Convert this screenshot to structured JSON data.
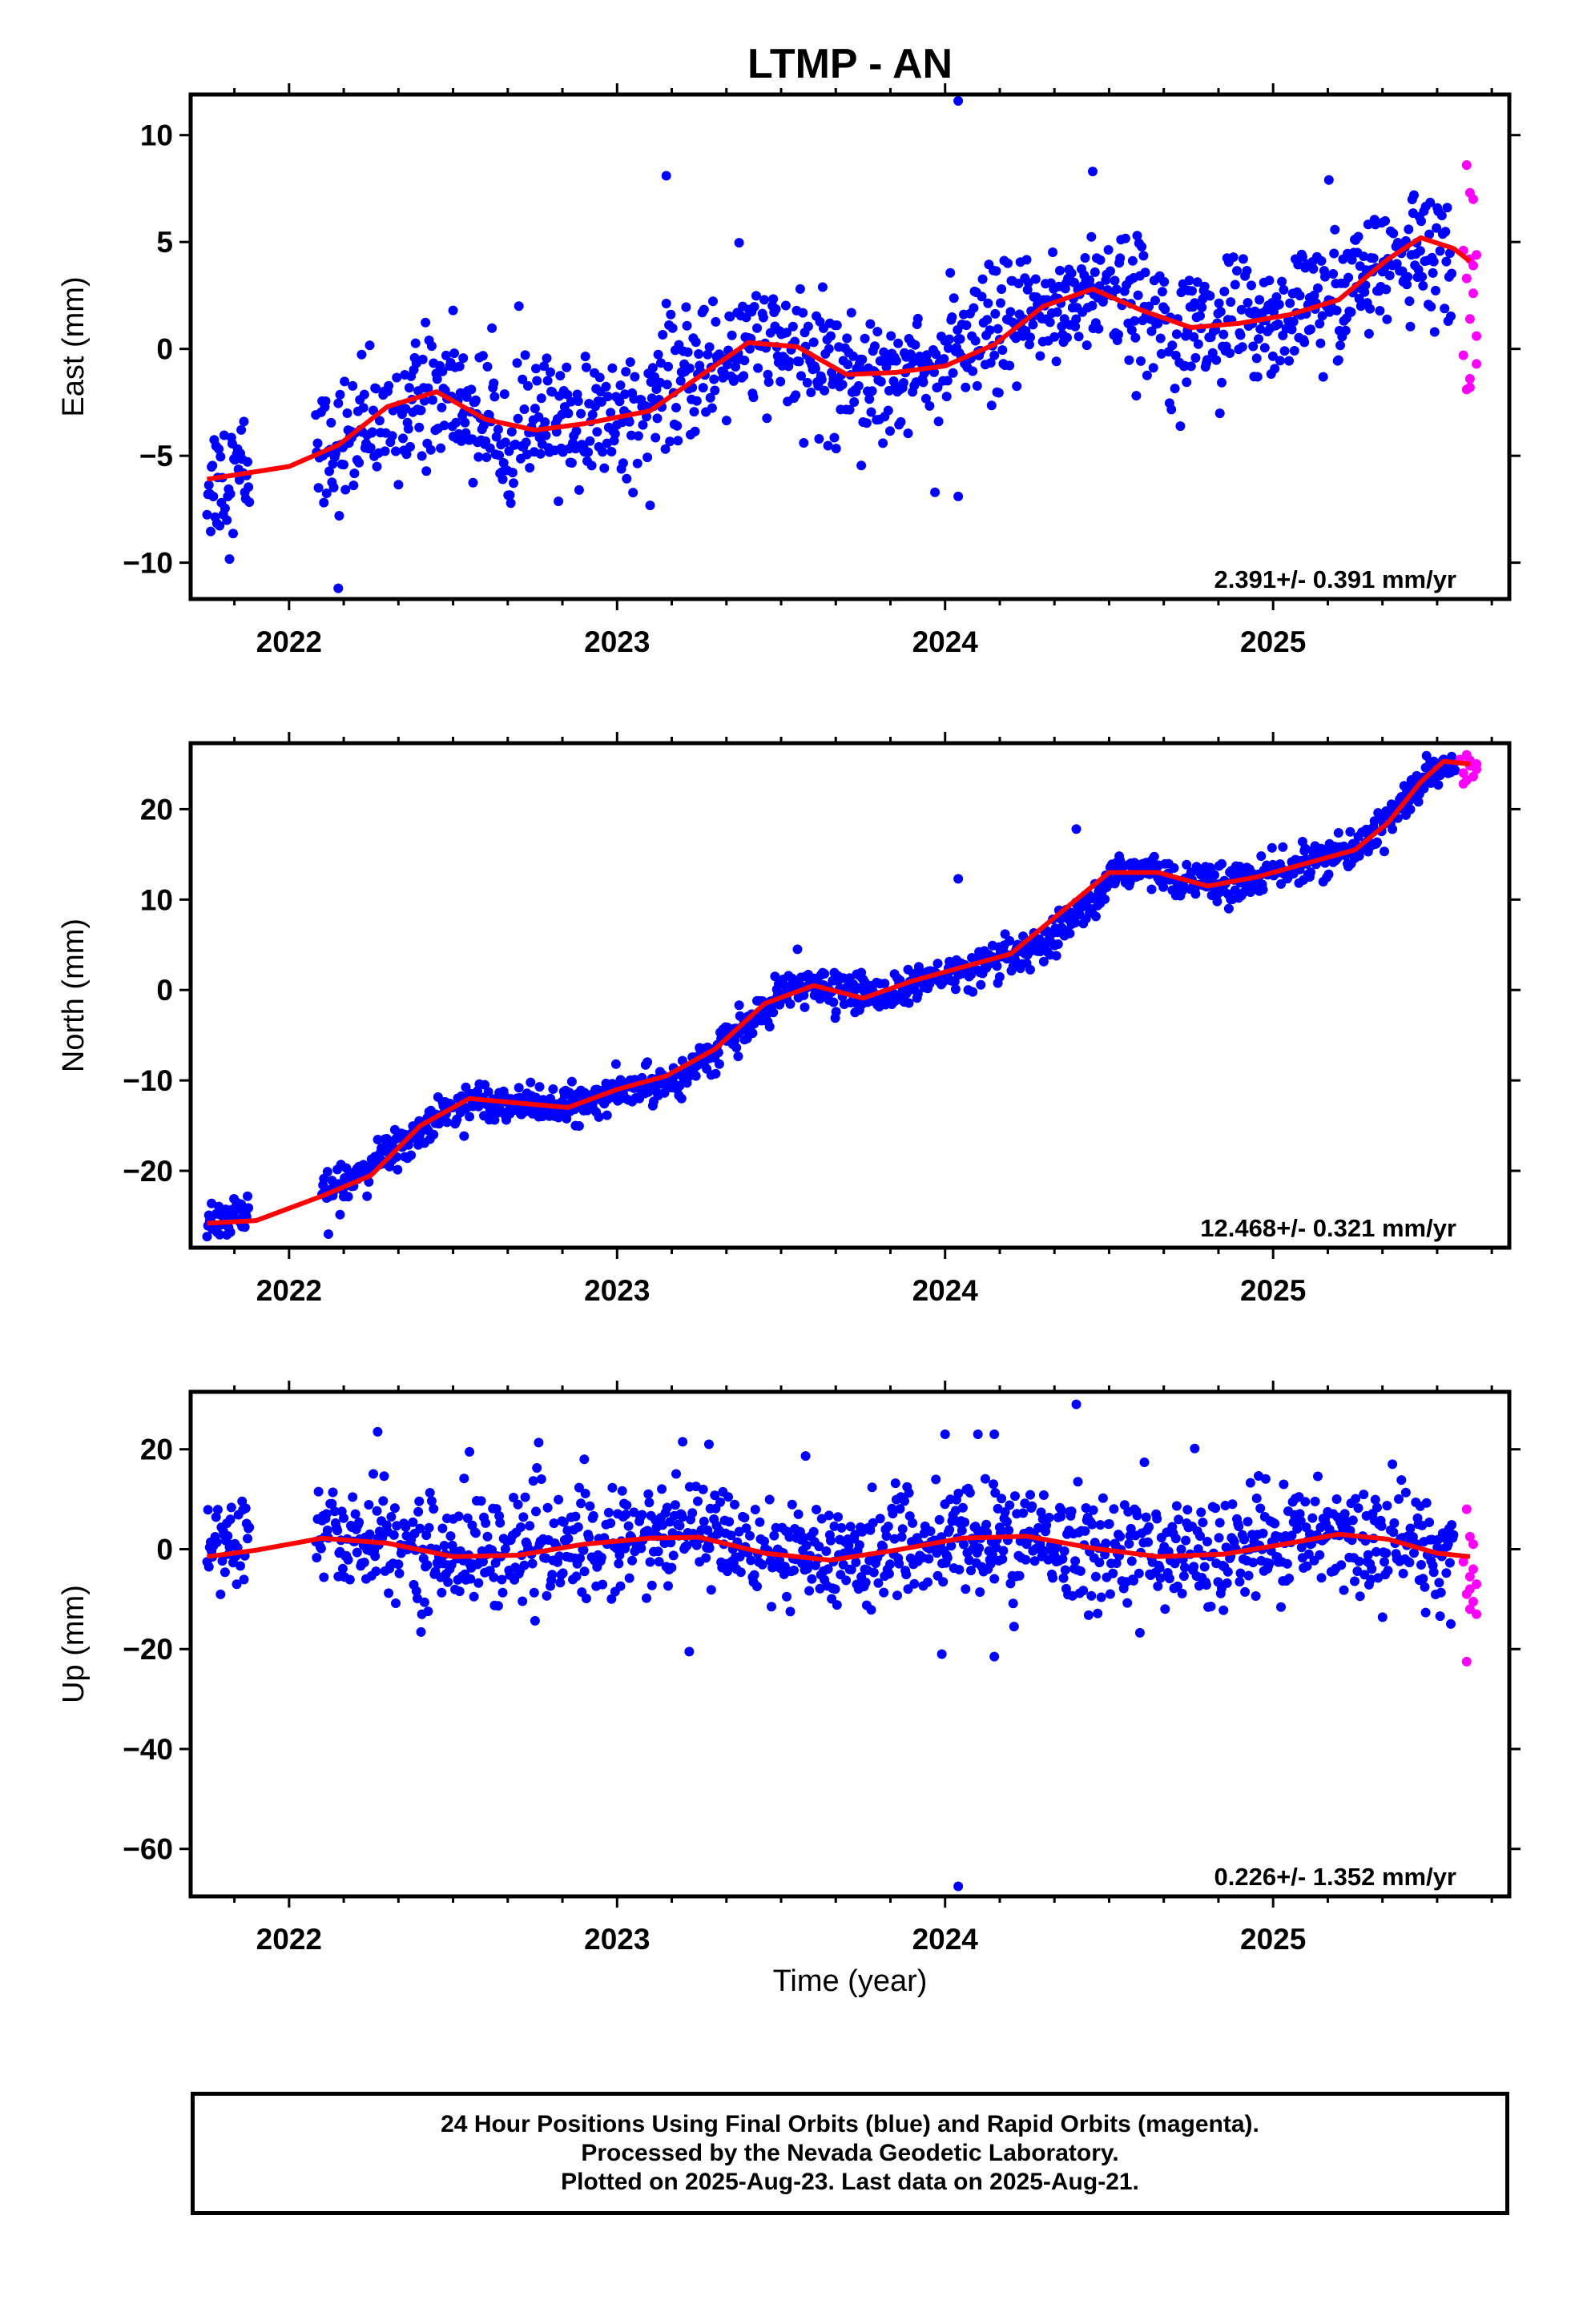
{
  "title": "LTMP - AN",
  "xlabel": "Time (year)",
  "footer": {
    "line1": "24 Hour Positions Using Final Orbits (blue) and Rapid Orbits (magenta).",
    "line2": "Processed by the Nevada Geodetic Laboratory.",
    "line3": "Plotted on 2025-Aug-23. Last data on 2025-Aug-21."
  },
  "colors": {
    "final": "#0000ff",
    "rapid": "#ff00ff",
    "model": "#ff0000",
    "frame": "#000000"
  },
  "chart_data": [
    {
      "type": "scatter",
      "ylabel": "East (mm)",
      "rate_label": "2.391+/- 0.391 mm/yr",
      "xlim": [
        2021.7,
        2025.72
      ],
      "ylim": [
        -11.7,
        11.9
      ],
      "x_ticks": [
        2022,
        2023,
        2024,
        2025
      ],
      "y_ticks": [
        -10,
        -5,
        0,
        5,
        10
      ],
      "model_curve": {
        "x": [
          2021.75,
          2022.0,
          2022.15,
          2022.3,
          2022.45,
          2022.6,
          2022.75,
          2022.9,
          2023.1,
          2023.25,
          2023.4,
          2023.55,
          2023.7,
          2023.85,
          2024.0,
          2024.15,
          2024.3,
          2024.45,
          2024.6,
          2024.75,
          2024.9,
          2025.05,
          2025.2,
          2025.35,
          2025.45,
          2025.55,
          2025.6
        ],
        "y": [
          -6.1,
          -5.5,
          -4.5,
          -2.7,
          -2.0,
          -3.3,
          -3.8,
          -3.5,
          -2.9,
          -1.3,
          0.3,
          0.1,
          -1.2,
          -1.1,
          -0.8,
          0.2,
          2.0,
          2.8,
          1.8,
          1.0,
          1.2,
          1.6,
          2.3,
          4.2,
          5.2,
          4.7,
          4.1
        ]
      },
      "final_trend": [
        [
          2021.75,
          -6.2
        ],
        [
          2022.2,
          -4.2
        ],
        [
          2022.45,
          -2.0
        ],
        [
          2022.65,
          -3.8
        ],
        [
          2023.0,
          -3.2
        ],
        [
          2023.4,
          0.3
        ],
        [
          2023.75,
          -1.2
        ],
        [
          2024.0,
          -0.6
        ],
        [
          2024.45,
          2.9
        ],
        [
          2024.8,
          1.0
        ],
        [
          2025.15,
          2.0
        ],
        [
          2025.45,
          5.0
        ],
        [
          2025.55,
          3.0
        ]
      ],
      "final_gaps": [
        [
          2021.88,
          2022.08
        ]
      ],
      "final_spread": 1.5,
      "outliers": [
        [
          2024.04,
          11.6
        ],
        [
          2023.15,
          8.1
        ],
        [
          2024.45,
          8.3
        ],
        [
          2025.17,
          7.9
        ],
        [
          2022.15,
          -11.2
        ],
        [
          2024.04,
          -6.9
        ],
        [
          2022.5,
          1.8
        ]
      ],
      "rapid": [
        [
          2025.59,
          8.6
        ],
        [
          2025.6,
          7.3
        ],
        [
          2025.61,
          7.0
        ],
        [
          2025.58,
          4.6
        ],
        [
          2025.6,
          4.2
        ],
        [
          2025.62,
          4.4
        ],
        [
          2025.59,
          3.3
        ],
        [
          2025.61,
          2.6
        ],
        [
          2025.6,
          1.4
        ],
        [
          2025.62,
          0.6
        ],
        [
          2025.58,
          -0.3
        ],
        [
          2025.6,
          -1.4
        ],
        [
          2025.6,
          -1.8
        ],
        [
          2025.62,
          -0.7
        ],
        [
          2025.59,
          -1.9
        ],
        [
          2025.61,
          3.9
        ]
      ]
    },
    {
      "type": "scatter",
      "ylabel": "North (mm)",
      "rate_label": "12.468+/- 0.321 mm/yr",
      "xlim": [
        2021.7,
        2025.72
      ],
      "ylim": [
        -28.5,
        27.3
      ],
      "x_ticks": [
        2022,
        2023,
        2024,
        2025
      ],
      "y_ticks": [
        -20,
        -10,
        0,
        10,
        20
      ],
      "model_curve": {
        "x": [
          2021.75,
          2021.9,
          2022.1,
          2022.25,
          2022.4,
          2022.55,
          2022.7,
          2022.85,
          2023.0,
          2023.15,
          2023.3,
          2023.45,
          2023.6,
          2023.75,
          2023.9,
          2024.05,
          2024.2,
          2024.35,
          2024.5,
          2024.65,
          2024.8,
          2024.95,
          2025.1,
          2025.25,
          2025.35,
          2025.45,
          2025.52,
          2025.6
        ],
        "y": [
          -25.8,
          -25.5,
          -22.8,
          -20.5,
          -15.0,
          -12.0,
          -12.5,
          -13.0,
          -11.0,
          -9.5,
          -6.5,
          -1.5,
          0.5,
          -0.9,
          1.0,
          2.5,
          4.0,
          8.5,
          13.0,
          13.0,
          11.5,
          12.5,
          14.0,
          15.5,
          18.5,
          23.0,
          25.3,
          25.0
        ]
      },
      "final_trend": [
        [
          2021.75,
          -25.5
        ],
        [
          2022.15,
          -22.0
        ],
        [
          2022.3,
          -18.0
        ],
        [
          2022.55,
          -12.0
        ],
        [
          2022.85,
          -13.0
        ],
        [
          2023.2,
          -9.5
        ],
        [
          2023.55,
          0.5
        ],
        [
          2023.8,
          -0.5
        ],
        [
          2024.05,
          2.0
        ],
        [
          2024.3,
          4.5
        ],
        [
          2024.55,
          13.5
        ],
        [
          2024.85,
          11.5
        ],
        [
          2025.25,
          15.5
        ],
        [
          2025.5,
          24.5
        ],
        [
          2025.56,
          25.5
        ]
      ],
      "final_gaps": [
        [
          2021.88,
          2022.1
        ]
      ],
      "final_spread": 1.0,
      "outliers": [
        [
          2024.04,
          12.3
        ],
        [
          2024.4,
          17.8
        ],
        [
          2023.55,
          4.5
        ],
        [
          2022.12,
          -27.0
        ]
      ],
      "rapid": [
        [
          2025.57,
          25.5
        ],
        [
          2025.58,
          24.0
        ],
        [
          2025.59,
          23.2
        ],
        [
          2025.6,
          24.8
        ],
        [
          2025.6,
          25.4
        ],
        [
          2025.61,
          23.6
        ],
        [
          2025.62,
          25.0
        ],
        [
          2025.59,
          26.0
        ],
        [
          2025.62,
          24.4
        ],
        [
          2025.58,
          22.8
        ]
      ]
    },
    {
      "type": "scatter",
      "ylabel": "Up (mm)",
      "rate_label": "0.226+/- 1.352 mm/yr",
      "xlim": [
        2021.7,
        2025.72
      ],
      "ylim": [
        -69.5,
        31.5
      ],
      "x_ticks": [
        2022,
        2023,
        2024,
        2025
      ],
      "y_ticks": [
        -60,
        -40,
        -20,
        0,
        20
      ],
      "model_curve": {
        "x": [
          2021.75,
          2021.9,
          2022.1,
          2022.3,
          2022.5,
          2022.7,
          2022.9,
          2023.1,
          2023.25,
          2023.45,
          2023.65,
          2023.85,
          2024.05,
          2024.25,
          2024.45,
          2024.65,
          2024.85,
          2025.05,
          2025.2,
          2025.35,
          2025.5,
          2025.6
        ],
        "y": [
          -1.5,
          -0.2,
          2.2,
          1.2,
          -1.5,
          -1.2,
          1.0,
          2.2,
          2.4,
          -0.8,
          -2.2,
          -0.2,
          2.2,
          2.6,
          0.2,
          -1.5,
          -1.0,
          1.2,
          3.0,
          2.0,
          -0.8,
          -1.5
        ]
      },
      "final_trend": [
        [
          2021.75,
          0.0
        ],
        [
          2022.1,
          3.0
        ],
        [
          2022.5,
          -1.0
        ],
        [
          2022.9,
          1.0
        ],
        [
          2023.25,
          3.0
        ],
        [
          2023.65,
          -2.0
        ],
        [
          2024.05,
          2.0
        ],
        [
          2024.45,
          0.5
        ],
        [
          2024.85,
          -1.0
        ],
        [
          2025.2,
          4.0
        ],
        [
          2025.55,
          -1.0
        ]
      ],
      "final_gaps": [
        [
          2021.88,
          2022.08
        ]
      ],
      "final_spread": 5.5,
      "outliers": [
        [
          2024.4,
          29.0
        ],
        [
          2022.27,
          23.5
        ],
        [
          2024.0,
          23.0
        ],
        [
          2024.1,
          23.0
        ],
        [
          2024.15,
          23.0
        ],
        [
          2023.2,
          21.5
        ],
        [
          2023.28,
          21.0
        ],
        [
          2023.22,
          -20.5
        ],
        [
          2023.99,
          -21.0
        ],
        [
          2024.15,
          -21.5
        ],
        [
          2024.04,
          -67.5
        ],
        [
          2022.55,
          19.5
        ],
        [
          2022.9,
          18.0
        ]
      ],
      "rapid": [
        [
          2025.59,
          8.0
        ],
        [
          2025.6,
          2.5
        ],
        [
          2025.61,
          1.0
        ],
        [
          2025.58,
          -2.5
        ],
        [
          2025.6,
          -5.5
        ],
        [
          2025.62,
          -7.0
        ],
        [
          2025.59,
          -9.0
        ],
        [
          2025.61,
          -10.5
        ],
        [
          2025.6,
          -12.0
        ],
        [
          2025.62,
          -13.0
        ],
        [
          2025.59,
          -22.5
        ],
        [
          2025.61,
          -4.0
        ],
        [
          2025.6,
          -8.0
        ]
      ]
    }
  ]
}
